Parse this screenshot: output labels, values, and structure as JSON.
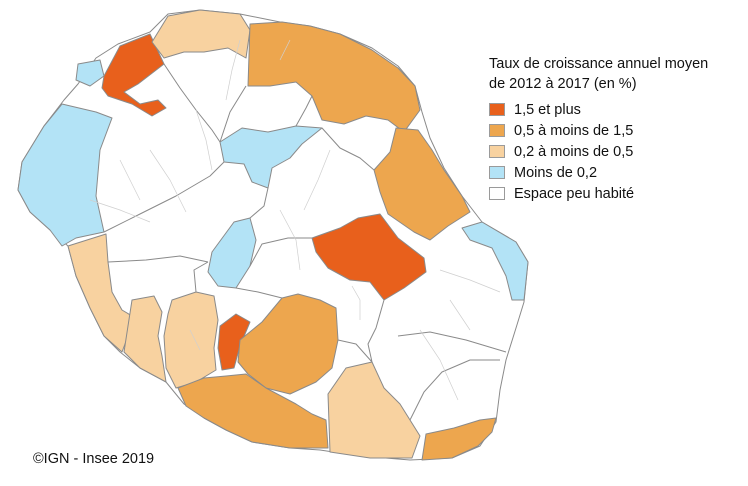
{
  "legend": {
    "title_line1": "Taux de croissance annuel moyen",
    "title_line2": "de 2012 à 2017 (en %)",
    "items": [
      {
        "label": "1,5 et plus",
        "color": "#e8601c"
      },
      {
        "label": "0,5 à moins de 1,5",
        "color": "#eda64e"
      },
      {
        "label": "0,2 à moins de 0,5",
        "color": "#f8d2a0"
      },
      {
        "label": "Moins de 0,2",
        "color": "#b3e3f6"
      },
      {
        "label": "Espace peu habité",
        "color": "#ffffff"
      }
    ]
  },
  "credit": "©IGN - Insee 2019"
}
